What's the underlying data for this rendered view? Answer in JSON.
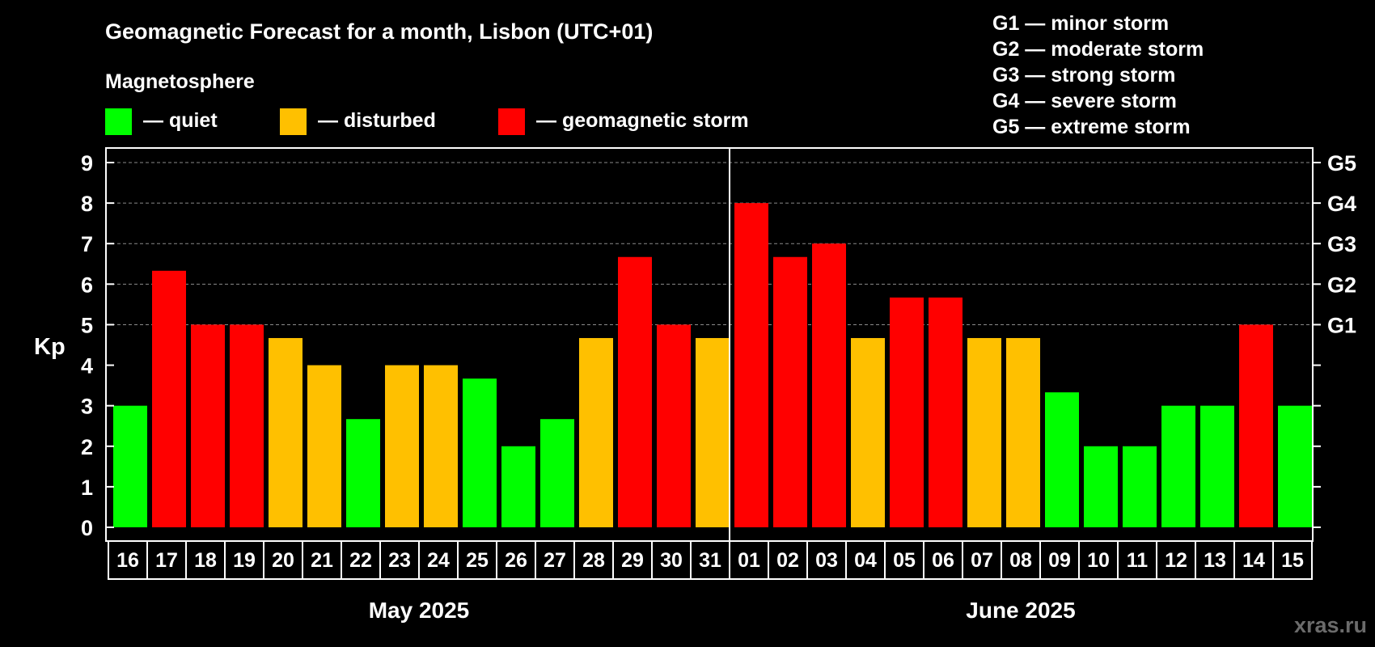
{
  "chart_data": {
    "type": "bar",
    "title": "Geomagnetic Forecast for a month, Lisbon (UTC+01)",
    "legend_title": "Magnetosphere",
    "legend": [
      {
        "label": "— quiet",
        "color": "#00ff00"
      },
      {
        "label": "— disturbed",
        "color": "#ffc000"
      },
      {
        "label": "— geomagnetic storm",
        "color": "#ff0000"
      }
    ],
    "storm_scale": [
      "G1 — minor storm",
      "G2 — moderate storm",
      "G3 — strong storm",
      "G4 — severe storm",
      "G5 — extreme storm"
    ],
    "ylabel": "Kp",
    "ylim": [
      0,
      9
    ],
    "yticks": [
      0,
      1,
      2,
      3,
      4,
      5,
      6,
      7,
      8,
      9
    ],
    "right_ticks": [
      {
        "value": 5,
        "label": "G1"
      },
      {
        "value": 6,
        "label": "G2"
      },
      {
        "value": 7,
        "label": "G3"
      },
      {
        "value": 8,
        "label": "G4"
      },
      {
        "value": 9,
        "label": "G5"
      }
    ],
    "grid": "dashed horizontal at 5–9",
    "categories": [
      "16",
      "17",
      "18",
      "19",
      "20",
      "21",
      "22",
      "23",
      "24",
      "25",
      "26",
      "27",
      "28",
      "29",
      "30",
      "31",
      "01",
      "02",
      "03",
      "04",
      "05",
      "06",
      "07",
      "08",
      "09",
      "10",
      "11",
      "12",
      "13",
      "14",
      "15"
    ],
    "values": [
      3,
      6.33,
      5,
      5,
      4.67,
      4,
      2.67,
      4,
      4,
      3.67,
      2,
      2.67,
      4.67,
      6.67,
      5,
      4.67,
      8,
      6.67,
      7,
      4.67,
      5.67,
      5.67,
      4.67,
      4.67,
      3.33,
      2,
      2,
      3,
      3,
      5,
      3
    ],
    "status": [
      "quiet",
      "storm",
      "storm",
      "storm",
      "disturbed",
      "disturbed",
      "quiet",
      "disturbed",
      "disturbed",
      "quiet",
      "quiet",
      "quiet",
      "disturbed",
      "storm",
      "storm",
      "disturbed",
      "storm",
      "storm",
      "storm",
      "disturbed",
      "storm",
      "storm",
      "disturbed",
      "disturbed",
      "quiet",
      "quiet",
      "quiet",
      "quiet",
      "quiet",
      "storm",
      "quiet"
    ],
    "colors": {
      "quiet": "#00ff00",
      "disturbed": "#ffc000",
      "storm": "#ff0000"
    },
    "months": [
      {
        "label": "May 2025",
        "days": 16
      },
      {
        "label": "June 2025",
        "days": 15
      }
    ]
  },
  "watermark": "xras.ru"
}
